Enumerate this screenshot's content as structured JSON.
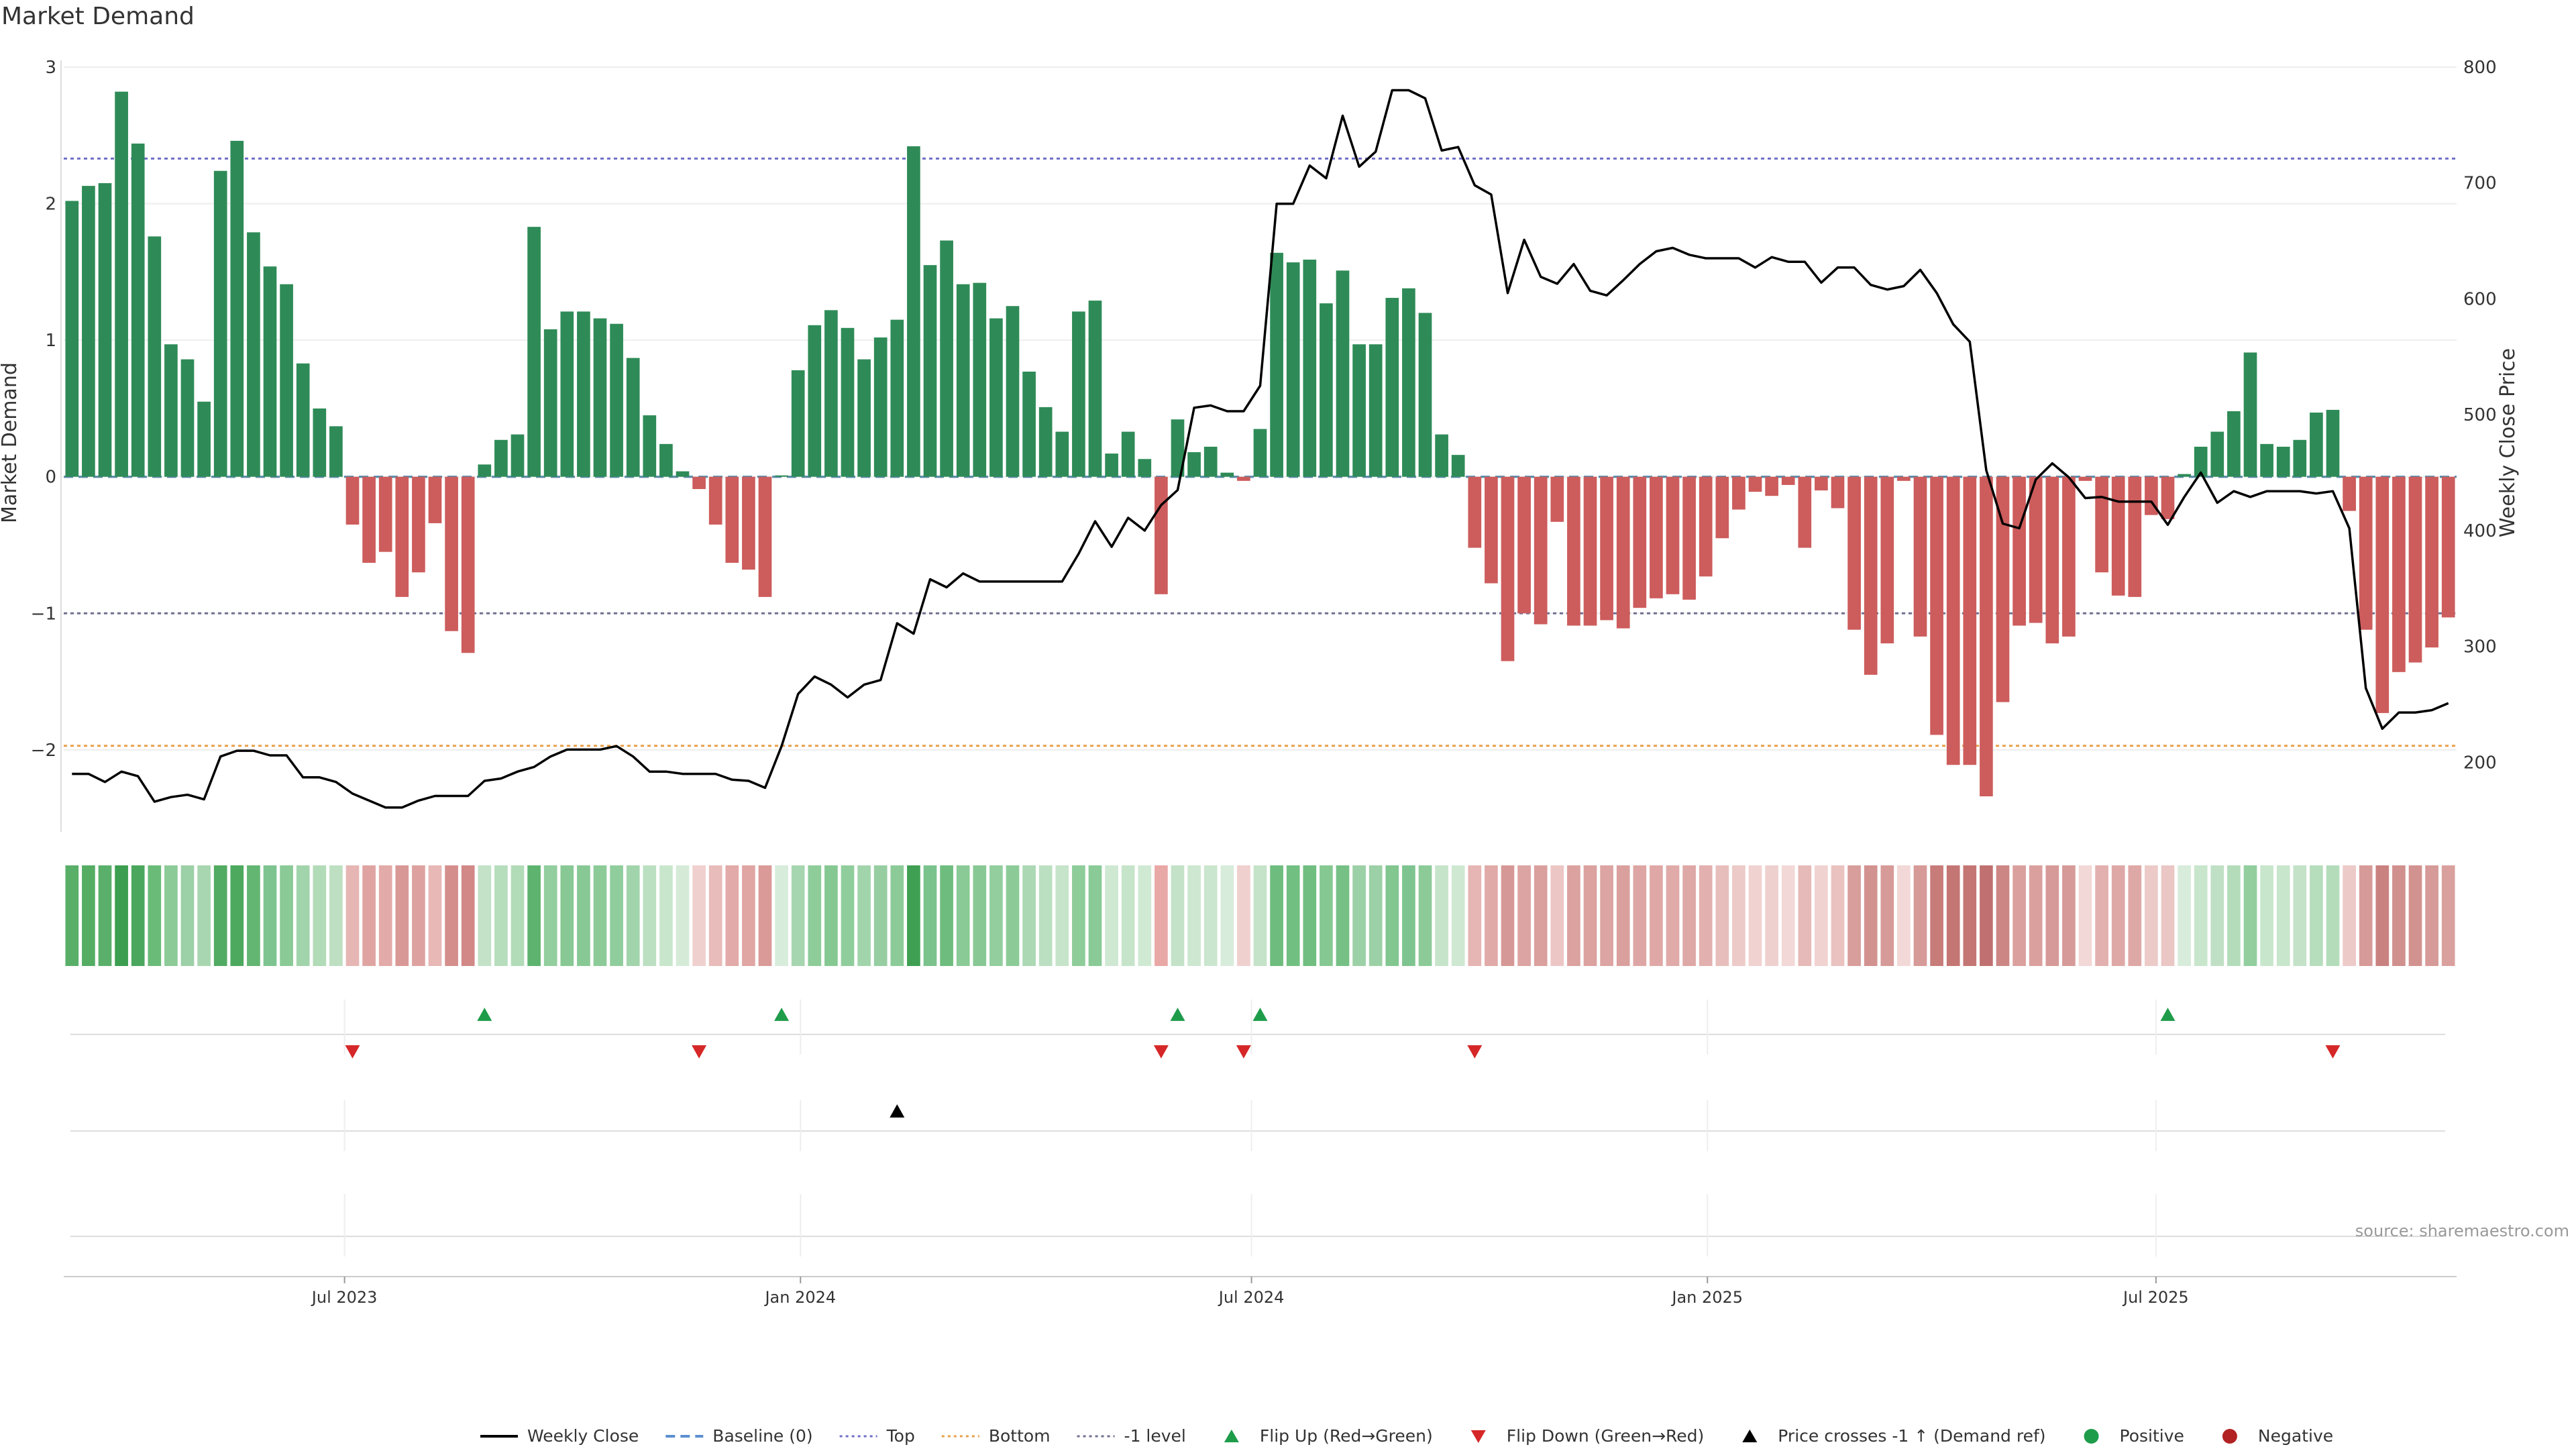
{
  "chart_data": {
    "type": "bar",
    "title": "Market Demand",
    "ylabel": "Market Demand",
    "y2label": "Weekly Close Price",
    "ylim": [
      -2.6,
      3.0
    ],
    "y2lim": [
      140,
      800
    ],
    "yticks": [
      3,
      2,
      1,
      0,
      -1,
      -2
    ],
    "ytick_labels": [
      "3",
      "2",
      "1",
      "0",
      "−1",
      "−2"
    ],
    "y2ticks": [
      800,
      700,
      600,
      500,
      400,
      300,
      200
    ],
    "x_start": "2023-03-13",
    "x_end": "2025-10-27",
    "xticks": [
      {
        "date": "2023-07-01",
        "label": "Jul 2023"
      },
      {
        "date": "2024-01-01",
        "label": "Jan 2024"
      },
      {
        "date": "2024-07-01",
        "label": "Jul 2024"
      },
      {
        "date": "2025-01-01",
        "label": "Jan 2025"
      },
      {
        "date": "2025-07-01",
        "label": "Jul 2025"
      }
    ],
    "reference_lines": [
      {
        "name": "Top",
        "value": 2.33,
        "color": "#6f6fc8",
        "style": "dotted"
      },
      {
        "name": "Bottom",
        "value": -1.97,
        "color": "#e8a04a",
        "style": "dotted"
      },
      {
        "name": "-1 level",
        "value": -1.0,
        "color": "#707090",
        "style": "dotted"
      },
      {
        "name": "Baseline (0)",
        "value": 0,
        "color": "#5b8fd0",
        "style": "dashed"
      }
    ],
    "colors": {
      "positive": "#2e8b57",
      "negative": "#cd5c5c",
      "price": "#000000",
      "flip_up": "#1e9c4a",
      "flip_down": "#d62728",
      "price_cross": "#000000"
    },
    "demand": [
      2.02,
      2.13,
      2.15,
      2.82,
      2.44,
      1.76,
      0.97,
      0.86,
      0.55,
      2.24,
      2.46,
      1.79,
      1.54,
      1.41,
      0.83,
      0.5,
      0.37,
      -0.35,
      -0.63,
      -0.55,
      -0.88,
      -0.7,
      -0.34,
      -1.13,
      -1.29,
      0.09,
      0.27,
      0.31,
      1.83,
      1.08,
      1.21,
      1.21,
      1.16,
      1.12,
      0.87,
      0.45,
      0.24,
      0.04,
      -0.09,
      -0.35,
      -0.63,
      -0.68,
      -0.88,
      0.01,
      0.78,
      1.11,
      1.22,
      1.09,
      0.86,
      1.02,
      1.15,
      2.42,
      1.55,
      1.73,
      1.41,
      1.42,
      1.16,
      1.25,
      0.77,
      0.51,
      0.33,
      1.21,
      1.29,
      0.17,
      0.33,
      0.13,
      -0.86,
      0.42,
      0.18,
      0.22,
      0.03,
      -0.03,
      0.35,
      1.64,
      1.57,
      1.59,
      1.27,
      1.51,
      0.97,
      0.97,
      1.31,
      1.38,
      1.2,
      0.31,
      0.16,
      -0.52,
      -0.78,
      -1.35,
      -1.0,
      -1.08,
      -0.33,
      -1.09,
      -1.09,
      -1.05,
      -1.11,
      -0.96,
      -0.89,
      -0.86,
      -0.9,
      -0.73,
      -0.45,
      -0.24,
      -0.11,
      -0.14,
      -0.06,
      -0.52,
      -0.1,
      -0.23,
      -1.12,
      -1.45,
      -1.22,
      -0.03,
      -1.17,
      -1.89,
      -2.11,
      -2.11,
      -2.34,
      -1.65,
      -1.09,
      -1.07,
      -1.22,
      -1.17,
      -0.03,
      -0.7,
      -0.87,
      -0.88,
      -0.28,
      -0.31,
      0.02,
      0.22,
      0.33,
      0.48,
      0.91,
      0.24,
      0.22,
      0.27,
      0.47,
      0.49,
      -0.25,
      -1.12,
      -1.73,
      -1.43,
      -1.36,
      -1.25,
      -1.03
    ],
    "price": [
      190,
      190,
      183,
      192,
      188,
      166,
      170,
      172,
      168,
      205,
      210,
      210,
      206,
      206,
      187,
      187,
      183,
      173,
      167,
      161,
      161,
      167,
      171,
      171,
      171,
      184,
      186,
      192,
      196,
      205,
      211,
      211,
      211,
      214,
      205,
      192,
      192,
      190,
      190,
      190,
      185,
      184,
      178,
      214,
      259,
      274,
      267,
      256,
      267,
      271,
      320,
      311,
      358,
      351,
      363,
      356,
      356,
      356,
      356,
      356,
      356,
      380,
      408,
      386,
      411,
      400,
      422,
      435,
      506,
      508,
      503,
      503,
      525,
      682,
      682,
      715,
      704,
      758,
      714,
      727,
      780,
      780,
      773,
      728,
      731,
      698,
      690,
      605,
      651,
      619,
      613,
      630,
      607,
      603,
      616,
      630,
      641,
      644,
      638,
      635,
      635,
      635,
      627,
      636,
      632,
      632,
      614,
      627,
      627,
      612,
      608,
      611,
      625,
      605,
      578,
      563,
      452,
      406,
      402,
      444,
      458,
      446,
      428,
      429,
      425,
      425,
      425,
      405,
      429,
      450,
      424,
      434,
      429,
      434,
      434,
      434,
      432,
      434,
      402,
      264,
      229,
      243,
      243,
      245,
      251
    ],
    "heat_colors": [
      "#5aaf68",
      "#55ad64",
      "#5ab06a",
      "#3c9e50",
      "#4aa75d",
      "#6abb78",
      "#8cca98",
      "#9cd0a6",
      "#a8d6b0",
      "#52ab62",
      "#4ca95e",
      "#62b672",
      "#7ec490",
      "#8aca96",
      "#a2d4ac",
      "#b2dbb8",
      "#bedfc2",
      "#e6b6b4",
      "#dfa4a2",
      "#e2aaa8",
      "#d89896",
      "#dda2a0",
      "#e7b8b6",
      "#d48e8c",
      "#d18886",
      "#c3e2c8",
      "#b6ddbc",
      "#b2dbb8",
      "#5eb46e",
      "#92ce9e",
      "#88c894",
      "#88c894",
      "#8ccb98",
      "#90cd9c",
      "#a2d4ac",
      "#bbe0c1",
      "#c8e6cc",
      "#d5ebd8",
      "#f0d0ce",
      "#e8bcba",
      "#e2aaa8",
      "#e0a6a4",
      "#d99a98",
      "#d8ecdb",
      "#a6d6b0",
      "#8ecc9a",
      "#86c892",
      "#90cd9c",
      "#a2d4ac",
      "#96cea2",
      "#8ccb98",
      "#3fa053",
      "#7bc38c",
      "#6ebd7e",
      "#8aca96",
      "#88c894",
      "#92ce9e",
      "#8ccb98",
      "#acd8b4",
      "#bbe0c1",
      "#c6e4ca",
      "#8ecc9a",
      "#8aca96",
      "#cfe8d2",
      "#c6e4ca",
      "#d0e9d3",
      "#e8a8a6",
      "#c3e2c8",
      "#cde7d0",
      "#cbe6ce",
      "#d8ecdb",
      "#f0d0ce",
      "#c5e3c9",
      "#6ebd7e",
      "#72bf82",
      "#70be80",
      "#86c892",
      "#76c086",
      "#9cd0a6",
      "#9cd0a6",
      "#82c690",
      "#7ec490",
      "#8ccb98",
      "#c6e4ca",
      "#cfe8d2",
      "#e6b6b4",
      "#e0aaa8",
      "#d69896",
      "#dca4a2",
      "#daa09e",
      "#ecc6c4",
      "#dba2a0",
      "#dba2a0",
      "#dca4a2",
      "#daa09e",
      "#dda6a4",
      "#dfa8a6",
      "#dfaaa8",
      "#dea8a6",
      "#e2b0ae",
      "#e8bebc",
      "#eccac8",
      "#f0d2d0",
      "#eed0ce",
      "#f2d8d6",
      "#e6bab8",
      "#f0d2d0",
      "#eac2c0",
      "#d89e9c",
      "#d29290",
      "#d69a98",
      "#f2d8d6",
      "#d69a98",
      "#c77c7a",
      "#c47674",
      "#c47674",
      "#c07070",
      "#cc8684",
      "#daa09e",
      "#daa09e",
      "#d69a98",
      "#d69a98",
      "#f2d8d6",
      "#e2b0ae",
      "#dea8a6",
      "#dea8a6",
      "#eccac8",
      "#eac6c4",
      "#d8ecdb",
      "#c8e6cc",
      "#bfe0c4",
      "#b4dcba",
      "#92ce9e",
      "#c8e6cc",
      "#c8e6cc",
      "#c3e2c8",
      "#b6ddbc",
      "#b4dcba",
      "#eccac8",
      "#d69a98",
      "#c98280",
      "#d0908e",
      "#d29290",
      "#d69a98",
      "#daa09e"
    ],
    "flip_up": [
      25,
      43,
      67,
      72,
      127
    ],
    "flip_down": [
      17,
      38,
      66,
      71,
      85,
      137
    ],
    "price_cross_up": [
      50
    ],
    "legend": [
      {
        "label": "Weekly Close",
        "kind": "line",
        "color": "#000000"
      },
      {
        "label": "Baseline (0)",
        "kind": "dash",
        "color": "#5b8fd0"
      },
      {
        "label": "Top",
        "kind": "dot",
        "color": "#6f6fc8"
      },
      {
        "label": "Bottom",
        "kind": "dot",
        "color": "#e8a04a"
      },
      {
        "label": "-1 level",
        "kind": "dot",
        "color": "#707090"
      },
      {
        "label": "Flip Up (Red→Green)",
        "kind": "tri-up",
        "color": "#1e9c4a"
      },
      {
        "label": "Flip Down (Green→Red)",
        "kind": "tri-down",
        "color": "#d62728"
      },
      {
        "label": "Price crosses -1 ↑ (Demand ref)",
        "kind": "tri-up",
        "color": "#000000"
      },
      {
        "label": "Positive",
        "kind": "circle",
        "color": "#1e9c4a"
      },
      {
        "label": "Negative",
        "kind": "circle",
        "color": "#b22222"
      }
    ],
    "source": "source: sharemaestro.com"
  }
}
